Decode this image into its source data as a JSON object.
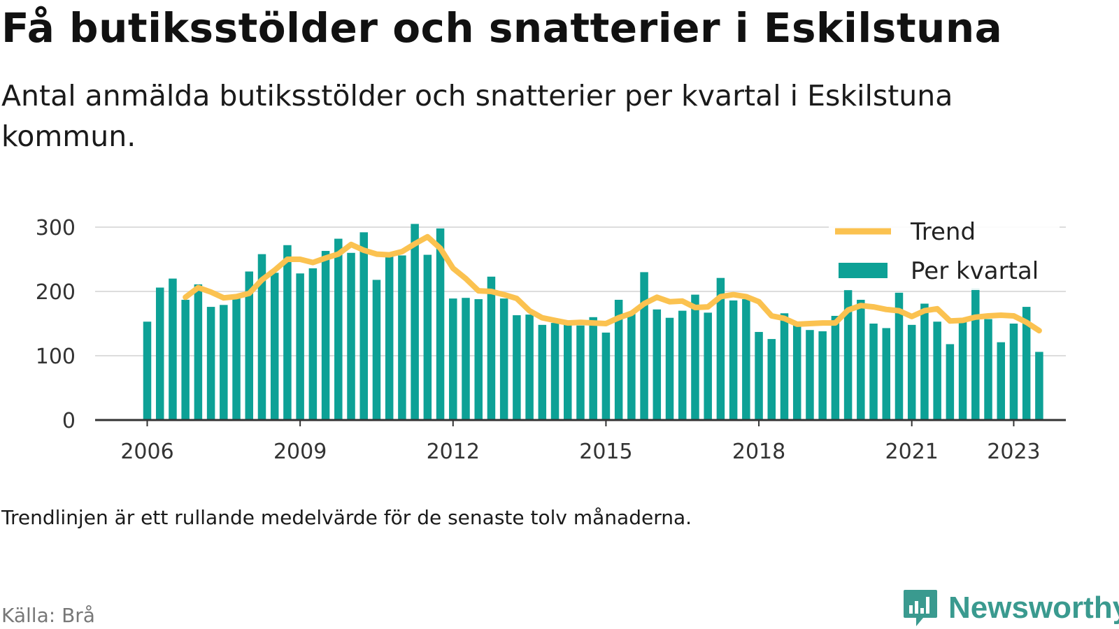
{
  "title": "Få butiksstölder och snatterier i Eskilstuna",
  "subtitle": "Antal anmälda butiksstölder och snatterier per kvartal i Eskilstuna kommun.",
  "footnote": "Trendlinjen är ett rullande medelvärde för de senaste tolv månaderna.",
  "source": "Källa: Brå",
  "brand": {
    "name": "Newsworthy",
    "logo_icon": "bar-chart-speech-bubble-icon"
  },
  "colors": {
    "bars": "#0da196",
    "trend": "#fbc250",
    "grid": "#dddddd",
    "axis": "#333333"
  },
  "chart_data": {
    "type": "bar",
    "x_tick_labels": [
      "2006",
      "2009",
      "2012",
      "2015",
      "2018",
      "2021",
      "2023"
    ],
    "y_tick_labels": [
      "0",
      "100",
      "200",
      "300"
    ],
    "ylim": [
      0,
      300
    ],
    "grid": true,
    "legend_position": "top-right",
    "categories": [
      "2006 Q1",
      "2006 Q2",
      "2006 Q3",
      "2006 Q4",
      "2007 Q1",
      "2007 Q2",
      "2007 Q3",
      "2007 Q4",
      "2008 Q1",
      "2008 Q2",
      "2008 Q3",
      "2008 Q4",
      "2009 Q1",
      "2009 Q2",
      "2009 Q3",
      "2009 Q4",
      "2010 Q1",
      "2010 Q2",
      "2010 Q3",
      "2010 Q4",
      "2011 Q1",
      "2011 Q2",
      "2011 Q3",
      "2011 Q4",
      "2012 Q1",
      "2012 Q2",
      "2012 Q3",
      "2012 Q4",
      "2013 Q1",
      "2013 Q2",
      "2013 Q3",
      "2013 Q4",
      "2014 Q1",
      "2014 Q2",
      "2014 Q3",
      "2014 Q4",
      "2015 Q1",
      "2015 Q2",
      "2015 Q3",
      "2015 Q4",
      "2016 Q1",
      "2016 Q2",
      "2016 Q3",
      "2016 Q4",
      "2017 Q1",
      "2017 Q2",
      "2017 Q3",
      "2017 Q4",
      "2018 Q1",
      "2018 Q2",
      "2018 Q3",
      "2018 Q4",
      "2019 Q1",
      "2019 Q2",
      "2019 Q3",
      "2019 Q4",
      "2020 Q1",
      "2020 Q2",
      "2020 Q3",
      "2020 Q4",
      "2021 Q1",
      "2021 Q2",
      "2021 Q3",
      "2021 Q4",
      "2022 Q1",
      "2022 Q2",
      "2022 Q3",
      "2022 Q4",
      "2023 Q1",
      "2023 Q2",
      "2023 Q3"
    ],
    "series": [
      {
        "name": "Per kvartal",
        "values": [
          153,
          206,
          220,
          187,
          211,
          176,
          179,
          192,
          231,
          258,
          229,
          272,
          228,
          236,
          263,
          282,
          260,
          292,
          218,
          256,
          256,
          305,
          257,
          298,
          189,
          190,
          188,
          223,
          189,
          163,
          164,
          148,
          151,
          148,
          147,
          160,
          136,
          187,
          165,
          230,
          172,
          159,
          170,
          195,
          167,
          221,
          186,
          188,
          137,
          126,
          166,
          149,
          140,
          138,
          162,
          202,
          187,
          150,
          143,
          198,
          148,
          181,
          153,
          118,
          156,
          205,
          157,
          121,
          150,
          176,
          106
        ]
      },
      {
        "name": "Trend",
        "values": [
          null,
          null,
          null,
          191,
          206,
          199,
          190,
          192,
          197,
          218,
          233,
          250,
          250,
          245,
          252,
          258,
          273,
          264,
          258,
          257,
          262,
          274,
          285,
          267,
          236,
          220,
          201,
          200,
          195,
          189,
          170,
          159,
          155,
          151,
          152,
          151,
          150,
          159,
          166,
          181,
          191,
          184,
          185,
          175,
          176,
          192,
          195,
          192,
          184,
          162,
          158,
          149,
          150,
          151,
          151,
          171,
          178,
          176,
          172,
          170,
          161,
          170,
          173,
          154,
          155,
          160,
          162,
          163,
          162,
          152,
          139
        ]
      }
    ]
  }
}
